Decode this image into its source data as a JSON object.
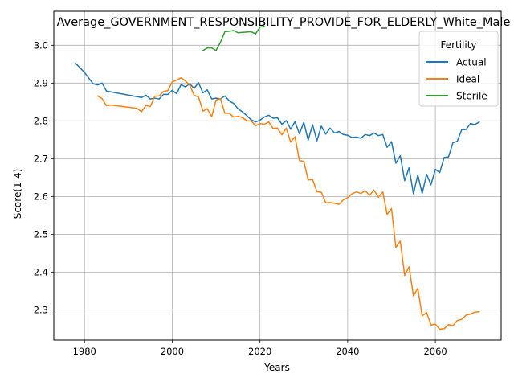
{
  "chart_data": {
    "type": "line",
    "title": "Average_GOVERNMENT_RESPONSIBILITY_PROVIDE_FOR_ELDERLY_White_Male",
    "xlabel": "Years",
    "ylabel": "Score(1-4)",
    "xlim": [
      1973,
      2075
    ],
    "ylim": [
      2.22,
      3.09
    ],
    "xticks": [
      1980,
      2000,
      2020,
      2040,
      2060
    ],
    "yticks": [
      2.3,
      2.4,
      2.5,
      2.6,
      2.7,
      2.8,
      2.9,
      3.0
    ],
    "grid": true,
    "legend": {
      "title": "Fertility",
      "position": "top-right"
    },
    "series": [
      {
        "name": "Actual",
        "color": "#1f77b4",
        "points": [
          [
            1978,
            2.952
          ],
          [
            1980,
            2.928
          ],
          [
            1982,
            2.898
          ],
          [
            1983,
            2.895
          ],
          [
            1984,
            2.9
          ],
          [
            1985,
            2.879
          ],
          [
            1993,
            2.862
          ],
          [
            1994,
            2.868
          ],
          [
            1995,
            2.858
          ],
          [
            1996,
            2.86
          ],
          [
            1997,
            2.858
          ],
          [
            1998,
            2.87
          ],
          [
            1999,
            2.87
          ],
          [
            2000,
            2.881
          ],
          [
            2001,
            2.872
          ],
          [
            2002,
            2.896
          ],
          [
            2003,
            2.89
          ],
          [
            2004,
            2.898
          ],
          [
            2005,
            2.886
          ],
          [
            2006,
            2.901
          ],
          [
            2007,
            2.874
          ],
          [
            2008,
            2.882
          ],
          [
            2009,
            2.858
          ],
          [
            2010,
            2.86
          ],
          [
            2011,
            2.858
          ],
          [
            2012,
            2.866
          ],
          [
            2013,
            2.853
          ],
          [
            2014,
            2.846
          ],
          [
            2015,
            2.832
          ],
          [
            2016,
            2.824
          ],
          [
            2017,
            2.814
          ],
          [
            2018,
            2.803
          ],
          [
            2019,
            2.797
          ],
          [
            2020,
            2.802
          ],
          [
            2021,
            2.81
          ],
          [
            2022,
            2.815
          ],
          [
            2023,
            2.807
          ],
          [
            2024,
            2.808
          ],
          [
            2025,
            2.791
          ],
          [
            2026,
            2.801
          ],
          [
            2027,
            2.778
          ],
          [
            2028,
            2.798
          ],
          [
            2029,
            2.766
          ],
          [
            2030,
            2.796
          ],
          [
            2031,
            2.749
          ],
          [
            2032,
            2.79
          ],
          [
            2033,
            2.747
          ],
          [
            2034,
            2.786
          ],
          [
            2035,
            2.765
          ],
          [
            2036,
            2.781
          ],
          [
            2037,
            2.768
          ],
          [
            2038,
            2.772
          ],
          [
            2039,
            2.764
          ],
          [
            2040,
            2.762
          ],
          [
            2041,
            2.756
          ],
          [
            2042,
            2.757
          ],
          [
            2043,
            2.754
          ],
          [
            2044,
            2.764
          ],
          [
            2045,
            2.761
          ],
          [
            2046,
            2.768
          ],
          [
            2047,
            2.761
          ],
          [
            2048,
            2.764
          ],
          [
            2049,
            2.73
          ],
          [
            2050,
            2.745
          ],
          [
            2051,
            2.688
          ],
          [
            2052,
            2.708
          ],
          [
            2053,
            2.642
          ],
          [
            2054,
            2.676
          ],
          [
            2055,
            2.607
          ],
          [
            2056,
            2.657
          ],
          [
            2057,
            2.608
          ],
          [
            2058,
            2.659
          ],
          [
            2059,
            2.631
          ],
          [
            2060,
            2.672
          ],
          [
            2061,
            2.663
          ],
          [
            2062,
            2.703
          ],
          [
            2063,
            2.705
          ],
          [
            2064,
            2.742
          ],
          [
            2065,
            2.746
          ],
          [
            2066,
            2.777
          ],
          [
            2067,
            2.777
          ],
          [
            2068,
            2.793
          ],
          [
            2069,
            2.79
          ],
          [
            2070,
            2.797
          ]
        ]
      },
      {
        "name": "Ideal",
        "color": "#ff7f0e",
        "points": [
          [
            1983,
            2.866
          ],
          [
            1984,
            2.859
          ],
          [
            1985,
            2.84
          ],
          [
            1986,
            2.842
          ],
          [
            1992,
            2.833
          ],
          [
            1993,
            2.824
          ],
          [
            1994,
            2.841
          ],
          [
            1995,
            2.838
          ],
          [
            1996,
            2.865
          ],
          [
            1997,
            2.866
          ],
          [
            1998,
            2.878
          ],
          [
            1999,
            2.88
          ],
          [
            2000,
            2.903
          ],
          [
            2001,
            2.908
          ],
          [
            2002,
            2.914
          ],
          [
            2003,
            2.906
          ],
          [
            2004,
            2.894
          ],
          [
            2005,
            2.868
          ],
          [
            2006,
            2.863
          ],
          [
            2007,
            2.826
          ],
          [
            2008,
            2.832
          ],
          [
            2009,
            2.811
          ],
          [
            2010,
            2.855
          ],
          [
            2011,
            2.859
          ],
          [
            2012,
            2.82
          ],
          [
            2013,
            2.82
          ],
          [
            2014,
            2.81
          ],
          [
            2015,
            2.812
          ],
          [
            2016,
            2.809
          ],
          [
            2017,
            2.8
          ],
          [
            2018,
            2.8
          ],
          [
            2019,
            2.787
          ],
          [
            2020,
            2.793
          ],
          [
            2021,
            2.791
          ],
          [
            2022,
            2.797
          ],
          [
            2023,
            2.78
          ],
          [
            2024,
            2.781
          ],
          [
            2025,
            2.763
          ],
          [
            2026,
            2.781
          ],
          [
            2027,
            2.744
          ],
          [
            2028,
            2.758
          ],
          [
            2029,
            2.695
          ],
          [
            2030,
            2.693
          ],
          [
            2031,
            2.644
          ],
          [
            2032,
            2.645
          ],
          [
            2033,
            2.613
          ],
          [
            2034,
            2.611
          ],
          [
            2035,
            2.583
          ],
          [
            2036,
            2.584
          ],
          [
            2037,
            2.582
          ],
          [
            2038,
            2.579
          ],
          [
            2039,
            2.591
          ],
          [
            2040,
            2.597
          ],
          [
            2041,
            2.607
          ],
          [
            2042,
            2.612
          ],
          [
            2043,
            2.608
          ],
          [
            2044,
            2.615
          ],
          [
            2045,
            2.603
          ],
          [
            2046,
            2.617
          ],
          [
            2047,
            2.598
          ],
          [
            2048,
            2.612
          ],
          [
            2049,
            2.553
          ],
          [
            2050,
            2.568
          ],
          [
            2051,
            2.465
          ],
          [
            2052,
            2.482
          ],
          [
            2053,
            2.391
          ],
          [
            2054,
            2.414
          ],
          [
            2055,
            2.337
          ],
          [
            2056,
            2.357
          ],
          [
            2057,
            2.284
          ],
          [
            2058,
            2.293
          ],
          [
            2059,
            2.26
          ],
          [
            2060,
            2.262
          ],
          [
            2061,
            2.249
          ],
          [
            2062,
            2.25
          ],
          [
            2063,
            2.261
          ],
          [
            2064,
            2.258
          ],
          [
            2065,
            2.272
          ],
          [
            2066,
            2.275
          ],
          [
            2067,
            2.286
          ],
          [
            2068,
            2.289
          ],
          [
            2069,
            2.294
          ],
          [
            2070,
            2.295
          ]
        ]
      },
      {
        "name": "Sterile",
        "color": "#2ca02c",
        "points": [
          [
            2007,
            2.986
          ],
          [
            2008,
            2.993
          ],
          [
            2009,
            2.993
          ],
          [
            2010,
            2.986
          ],
          [
            2011,
            3.008
          ],
          [
            2012,
            3.036
          ],
          [
            2013,
            3.037
          ],
          [
            2014,
            3.039
          ],
          [
            2015,
            3.033
          ],
          [
            2016,
            3.034
          ],
          [
            2017,
            3.035
          ],
          [
            2018,
            3.036
          ],
          [
            2019,
            3.03
          ],
          [
            2020,
            3.048
          ],
          [
            2021,
            3.05
          ]
        ]
      }
    ]
  }
}
